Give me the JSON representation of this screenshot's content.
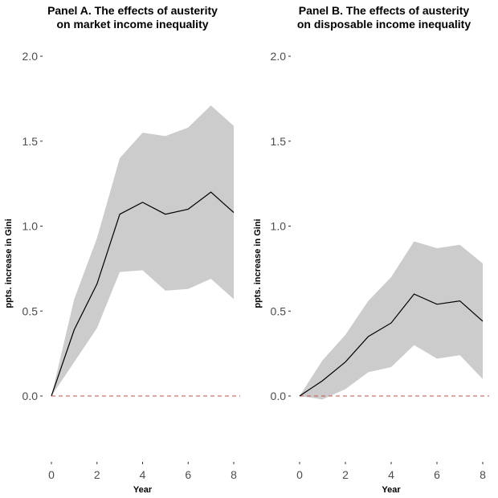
{
  "chart_data": [
    {
      "type": "line",
      "title": "Panel A. The effects of austerity\non market income inequality",
      "xlabel": "Year",
      "ylabel": "ppts. increase in Gini",
      "x": [
        0,
        1,
        2,
        3,
        4,
        5,
        6,
        7,
        8
      ],
      "xticks": [
        "0",
        "2",
        "4",
        "6",
        "8"
      ],
      "xtick_values": [
        0,
        2,
        4,
        6,
        8
      ],
      "yticks": [
        "0.0",
        "0.5",
        "1.0",
        "1.5",
        "2.0"
      ],
      "ytick_values": [
        0,
        0.5,
        1.0,
        1.5,
        2.0
      ],
      "xlim": [
        0,
        8
      ],
      "ylim": [
        -0.45,
        2.15
      ],
      "series": [
        {
          "values": [
            0,
            0.39,
            0.66,
            1.07,
            1.14,
            1.07,
            1.1,
            1.2,
            1.08
          ]
        }
      ],
      "band_upper": [
        0,
        0.57,
        0.93,
        1.4,
        1.55,
        1.53,
        1.58,
        1.71,
        1.59
      ],
      "band_lower": [
        0,
        0.2,
        0.4,
        0.73,
        0.74,
        0.62,
        0.63,
        0.69,
        0.57
      ],
      "reference_line": 0,
      "grid": false
    },
    {
      "type": "line",
      "title": "Panel B. The effects of austerity\non disposable income inequality",
      "xlabel": "Year",
      "ylabel": "ppts. increase in Gini",
      "x": [
        0,
        1,
        2,
        3,
        4,
        5,
        6,
        7,
        8
      ],
      "xticks": [
        "0",
        "2",
        "4",
        "6",
        "8"
      ],
      "xtick_values": [
        0,
        2,
        4,
        6,
        8
      ],
      "yticks": [
        "0.0",
        "0.5",
        "1.0",
        "1.5",
        "2.0"
      ],
      "ytick_values": [
        0,
        0.5,
        1.0,
        1.5,
        2.0
      ],
      "xlim": [
        0,
        8
      ],
      "ylim": [
        -0.45,
        2.15
      ],
      "series": [
        {
          "values": [
            0,
            0.09,
            0.2,
            0.35,
            0.43,
            0.6,
            0.54,
            0.56,
            0.44
          ]
        }
      ],
      "band_upper": [
        0,
        0.21,
        0.36,
        0.56,
        0.7,
        0.91,
        0.87,
        0.89,
        0.78
      ],
      "band_lower": [
        0,
        -0.02,
        0.04,
        0.14,
        0.17,
        0.3,
        0.22,
        0.24,
        0.1
      ],
      "reference_line": 0,
      "grid": false
    }
  ]
}
